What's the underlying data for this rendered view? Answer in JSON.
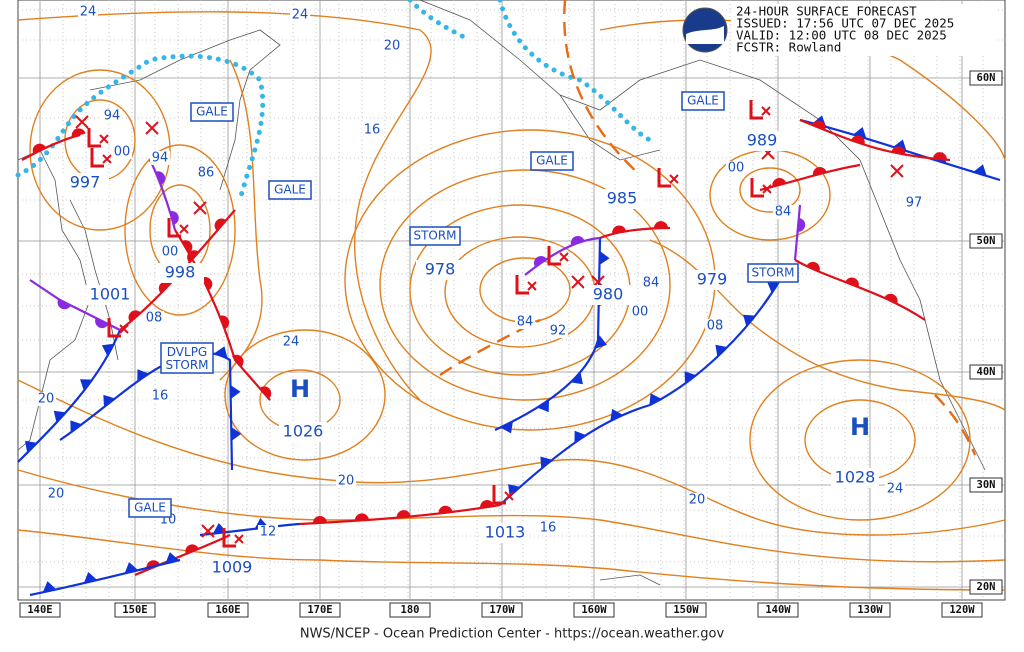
{
  "header": {
    "title": "24-HOUR SURFACE FORECAST",
    "issued": "ISSUED: 17:56 UTC 07 DEC 2025",
    "valid": "VALID:  12:00 UTC 08 DEC 2025",
    "forecaster": "FCSTR:  Rowland"
  },
  "lat_labels": [
    "60N",
    "50N",
    "40N",
    "30N",
    "20N"
  ],
  "lon_labels": [
    "140E",
    "150E",
    "160E",
    "170E",
    "180",
    "170W",
    "160W",
    "150W",
    "140W",
    "130W",
    "120W"
  ],
  "highs": [
    "H",
    "H"
  ],
  "centers": [
    "1026",
    "1028",
    "1001",
    "997",
    "998",
    "985",
    "980",
    "979",
    "989",
    "1013",
    "1009",
    "978"
  ],
  "isobar_labels": [
    "24",
    "24",
    "20",
    "16",
    "94",
    "94",
    "00",
    "86",
    "00",
    "08",
    "16",
    "20",
    "20",
    "24",
    "20",
    "84",
    "92",
    "00",
    "84",
    "08",
    "84",
    "97",
    "20",
    "24",
    "16",
    "12",
    "10",
    "00"
  ],
  "warnings": [
    "GALE",
    "GALE",
    "GALE",
    "GALE",
    "STORM",
    "STORM",
    "DVLPG STORM",
    "GALE"
  ],
  "footer": "NWS/NCEP - Ocean Prediction Center - https://ocean.weather.gov"
}
